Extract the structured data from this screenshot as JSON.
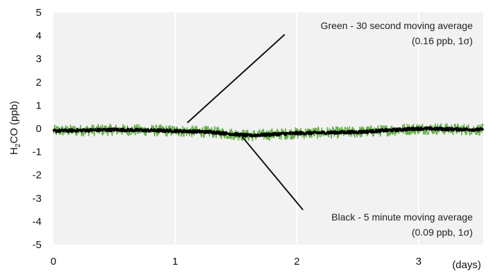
{
  "chart_data": {
    "type": "line",
    "ylabel_main": "H",
    "ylabel_sub": "2",
    "ylabel_rest": "CO (ppb)",
    "x_unit_label": "(days)",
    "xlim": [
      0,
      3.53
    ],
    "ylim": [
      -5,
      5
    ],
    "x_ticks": [
      "0",
      "1",
      "2",
      "3"
    ],
    "y_ticks": [
      "5",
      "4",
      "3",
      "2",
      "1",
      "0",
      "-1",
      "-2",
      "-3",
      "-4",
      "-5"
    ],
    "grid": "vertical",
    "background": "#f2f2f2",
    "series": [
      {
        "color": "#6ab04c",
        "x": [
          0,
          0.5,
          1.0,
          1.3,
          1.6,
          2.0,
          2.5,
          3.0,
          3.53
        ],
        "y": [
          -0.1,
          -0.05,
          -0.1,
          -0.15,
          -0.3,
          -0.2,
          -0.15,
          0.0,
          -0.05
        ],
        "spread": 0.25
      },
      {
        "color": "#000000",
        "x": [
          0,
          0.5,
          1.0,
          1.3,
          1.6,
          2.0,
          2.5,
          3.0,
          3.53
        ],
        "y": [
          -0.1,
          -0.05,
          -0.1,
          -0.15,
          -0.3,
          -0.2,
          -0.15,
          0.0,
          -0.05
        ],
        "spread": 0.06
      }
    ],
    "annotations": [
      {
        "line1": "Green - 30 second moving average",
        "line2": "(0.16 ppb, 1σ)",
        "from": [
          1.1,
          0.25
        ],
        "to": [
          1.9,
          4.05
        ]
      },
      {
        "line1": "Black - 5 minute moving average",
        "line2": "(0.09 ppb, 1σ)",
        "from": [
          1.55,
          -0.35
        ],
        "to": [
          2.05,
          -3.5
        ]
      }
    ]
  }
}
